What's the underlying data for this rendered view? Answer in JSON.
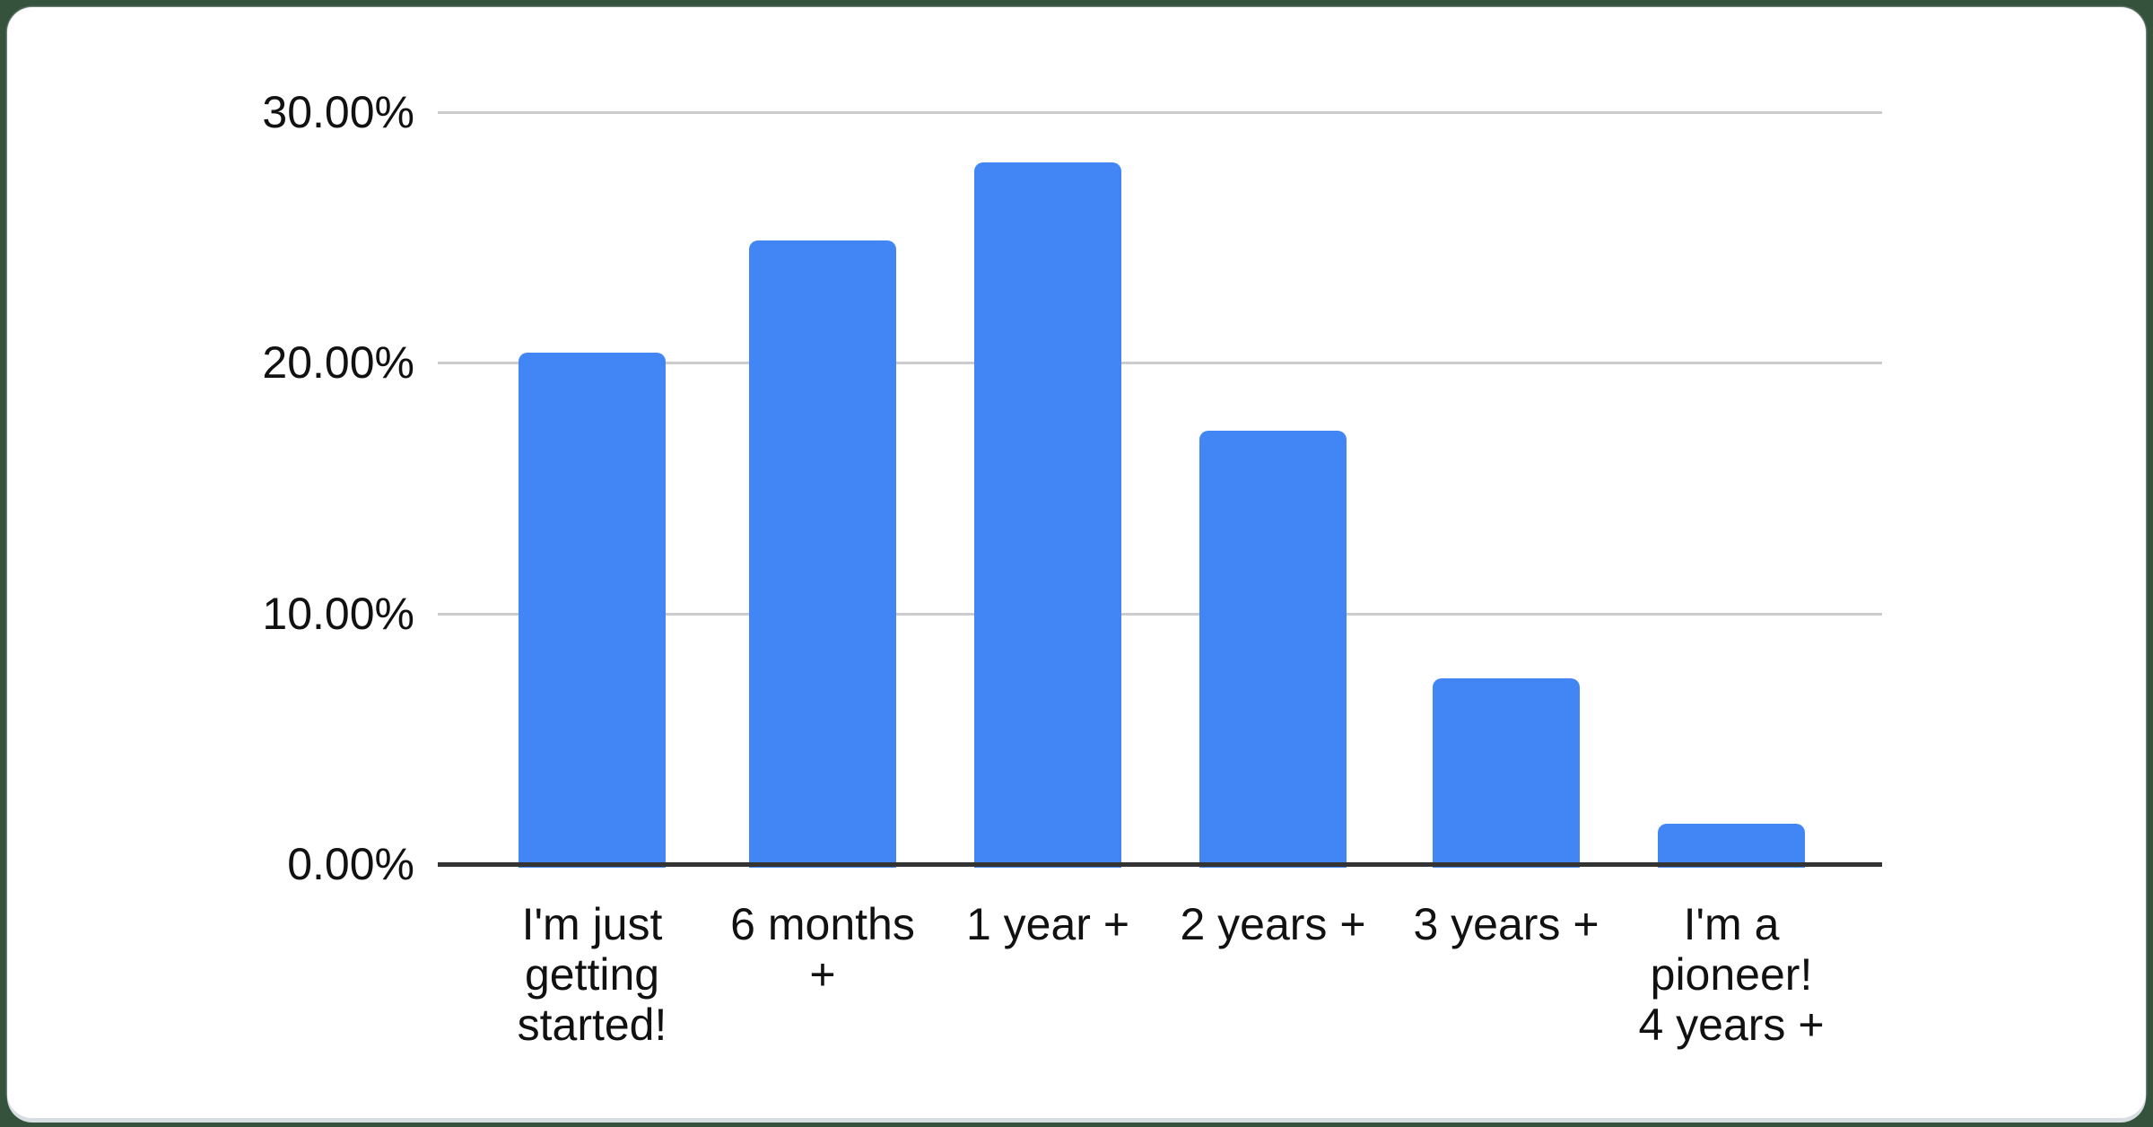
{
  "page": {
    "background_color": "#35523d",
    "card_color": "#ffffff"
  },
  "chart_data": {
    "type": "bar",
    "title": "",
    "categories": [
      "I'm just getting started!",
      "6 months +",
      "1 year +",
      "2 years +",
      "3 years +",
      "I'm a pioneer! 4 years +"
    ],
    "values": [
      20.4,
      24.9,
      28.0,
      17.3,
      7.4,
      1.6
    ],
    "unit": "%",
    "x_tick_display": [
      "I'm just\ngetting\nstarted!",
      "6 months\n+",
      "1 year +",
      "2 years +",
      "3 years +",
      "I'm a\npioneer!\n4 years +"
    ],
    "y_ticks": [
      {
        "label": "0.00%",
        "value": 0
      },
      {
        "label": "10.00%",
        "value": 10
      },
      {
        "label": "20.00%",
        "value": 20
      },
      {
        "label": "30.00%",
        "value": 30
      }
    ],
    "ylim": [
      0,
      30
    ],
    "grid": true,
    "legend_position": "none",
    "bar_color": "#4285f4",
    "gridline_color": "#cccccc",
    "axis_line_color": "#333333",
    "label_color": "#111111"
  }
}
